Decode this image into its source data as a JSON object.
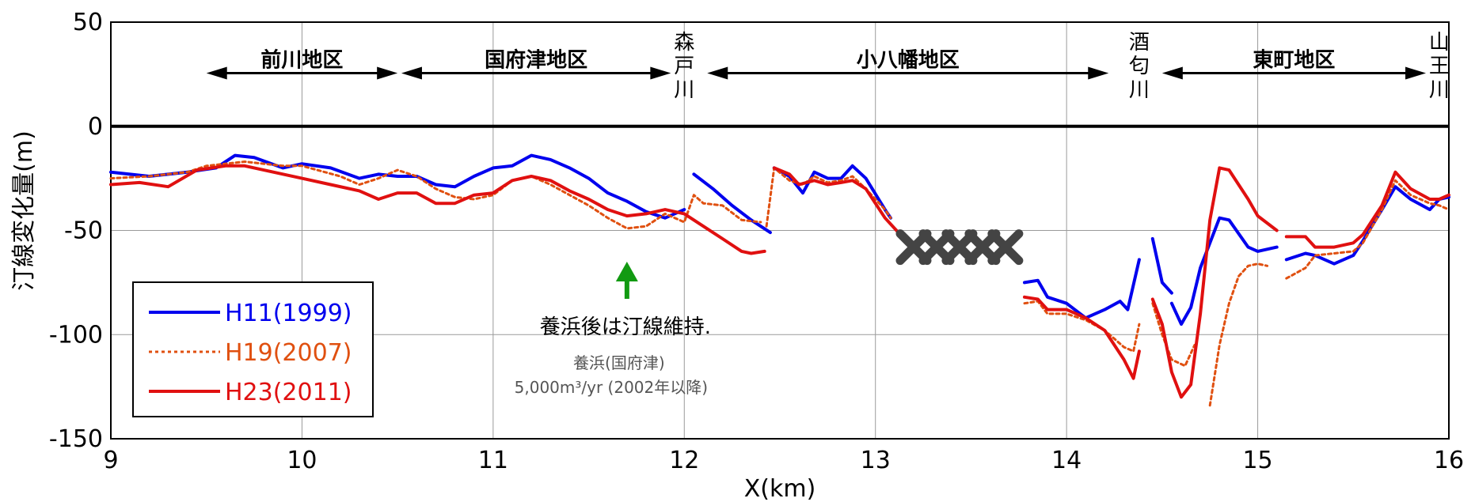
{
  "chart_data": {
    "type": "line",
    "xlabel": "X(km)",
    "ylabel": "汀線変化量(m)",
    "xlim": [
      9,
      16
    ],
    "ylim": [
      -150,
      50
    ],
    "xticks": [
      "9",
      "10",
      "11",
      "12",
      "13",
      "14",
      "15",
      "16"
    ],
    "yticks": [
      "50",
      "0",
      "-50",
      "-100",
      "-150"
    ],
    "grid": true,
    "legend_position": "bottom-left",
    "series": [
      {
        "name": "H11(1999)",
        "color": "#0000ee",
        "style": "solid",
        "segments": [
          [
            [
              9,
              -22
            ],
            [
              9.2,
              -24
            ],
            [
              9.4,
              -22
            ],
            [
              9.55,
              -20
            ],
            [
              9.65,
              -14
            ],
            [
              9.75,
              -15
            ],
            [
              9.9,
              -20
            ],
            [
              10,
              -18
            ],
            [
              10.15,
              -20
            ],
            [
              10.3,
              -25
            ],
            [
              10.4,
              -23
            ],
            [
              10.5,
              -24
            ],
            [
              10.6,
              -24
            ],
            [
              10.7,
              -28
            ],
            [
              10.8,
              -29
            ],
            [
              10.9,
              -24
            ],
            [
              11,
              -20
            ],
            [
              11.1,
              -19
            ],
            [
              11.2,
              -14
            ],
            [
              11.3,
              -16
            ],
            [
              11.4,
              -20
            ],
            [
              11.5,
              -25
            ],
            [
              11.6,
              -32
            ],
            [
              11.7,
              -36
            ],
            [
              11.8,
              -41
            ],
            [
              11.9,
              -44
            ],
            [
              12,
              -40
            ]
          ],
          [
            [
              12.05,
              -23
            ],
            [
              12.15,
              -30
            ],
            [
              12.25,
              -38
            ],
            [
              12.35,
              -45
            ],
            [
              12.45,
              -51
            ]
          ],
          [
            [
              12.47,
              -20
            ],
            [
              12.55,
              -24
            ],
            [
              12.62,
              -32
            ],
            [
              12.68,
              -22
            ],
            [
              12.75,
              -25
            ],
            [
              12.82,
              -25
            ],
            [
              12.88,
              -19
            ],
            [
              12.95,
              -25
            ],
            [
              13.05,
              -40
            ],
            [
              13.08,
              -44
            ]
          ],
          [
            [
              13.78,
              -75
            ],
            [
              13.85,
              -74
            ],
            [
              13.9,
              -82
            ],
            [
              14,
              -85
            ],
            [
              14.1,
              -92
            ],
            [
              14.2,
              -88
            ],
            [
              14.28,
              -84
            ],
            [
              14.32,
              -88
            ],
            [
              14.38,
              -64
            ]
          ],
          [
            [
              14.45,
              -54
            ],
            [
              14.5,
              -75
            ],
            [
              14.55,
              -80
            ]
          ],
          [
            [
              14.55,
              -85
            ],
            [
              14.6,
              -95
            ],
            [
              14.65,
              -87
            ],
            [
              14.7,
              -68
            ],
            [
              14.8,
              -44
            ],
            [
              14.85,
              -45
            ],
            [
              14.95,
              -58
            ],
            [
              15,
              -60
            ],
            [
              15.1,
              -58
            ]
          ],
          [
            [
              15.15,
              -64
            ],
            [
              15.25,
              -61
            ],
            [
              15.3,
              -62
            ],
            [
              15.4,
              -66
            ],
            [
              15.5,
              -62
            ],
            [
              15.55,
              -55
            ],
            [
              15.65,
              -40
            ],
            [
              15.72,
              -29
            ],
            [
              15.8,
              -35
            ],
            [
              15.9,
              -40
            ],
            [
              15.95,
              -35
            ],
            [
              16,
              -34
            ]
          ]
        ]
      },
      {
        "name": "H19(2007)",
        "color": "#e05010",
        "style": "dotted",
        "segments": [
          [
            [
              9,
              -25
            ],
            [
              9.2,
              -24
            ],
            [
              9.4,
              -22
            ],
            [
              9.5,
              -19
            ],
            [
              9.7,
              -17
            ],
            [
              9.9,
              -19
            ],
            [
              10,
              -19
            ],
            [
              10.2,
              -24
            ],
            [
              10.3,
              -28
            ],
            [
              10.4,
              -25
            ],
            [
              10.5,
              -21
            ],
            [
              10.6,
              -24
            ],
            [
              10.7,
              -30
            ],
            [
              10.8,
              -34
            ],
            [
              10.9,
              -35
            ],
            [
              11,
              -33
            ],
            [
              11.1,
              -26
            ],
            [
              11.2,
              -24
            ],
            [
              11.3,
              -28
            ],
            [
              11.4,
              -33
            ],
            [
              11.5,
              -38
            ],
            [
              11.6,
              -44
            ],
            [
              11.7,
              -49
            ],
            [
              11.8,
              -48
            ],
            [
              11.9,
              -42
            ],
            [
              12,
              -46
            ],
            [
              12.05,
              -33
            ],
            [
              12.1,
              -37
            ],
            [
              12.2,
              -38
            ],
            [
              12.3,
              -45
            ],
            [
              12.4,
              -46
            ]
          ],
          [
            [
              12.43,
              -48
            ],
            [
              12.47,
              -20
            ],
            [
              12.55,
              -26
            ],
            [
              12.62,
              -28
            ],
            [
              12.68,
              -24
            ],
            [
              12.75,
              -27
            ],
            [
              12.82,
              -26
            ],
            [
              12.88,
              -24
            ],
            [
              12.95,
              -30
            ],
            [
              13.05,
              -40
            ],
            [
              13.08,
              -44
            ]
          ],
          [
            [
              13.78,
              -85
            ],
            [
              13.85,
              -84
            ],
            [
              13.9,
              -90
            ],
            [
              14,
              -90
            ],
            [
              14.1,
              -93
            ],
            [
              14.2,
              -98
            ],
            [
              14.3,
              -106
            ],
            [
              14.35,
              -108
            ],
            [
              14.38,
              -95
            ]
          ],
          [
            [
              14.45,
              -85
            ],
            [
              14.5,
              -100
            ],
            [
              14.55,
              -112
            ],
            [
              14.62,
              -115
            ],
            [
              14.67,
              -105
            ]
          ],
          [
            [
              14.75,
              -134
            ],
            [
              14.8,
              -105
            ],
            [
              14.85,
              -85
            ],
            [
              14.9,
              -72
            ],
            [
              14.95,
              -67
            ],
            [
              15,
              -66
            ],
            [
              15.05,
              -67
            ]
          ],
          [
            [
              15.15,
              -73
            ],
            [
              15.25,
              -68
            ],
            [
              15.3,
              -62
            ],
            [
              15.4,
              -61
            ],
            [
              15.5,
              -60
            ],
            [
              15.55,
              -56
            ],
            [
              15.65,
              -40
            ],
            [
              15.72,
              -26
            ],
            [
              15.8,
              -33
            ],
            [
              15.9,
              -37
            ],
            [
              15.95,
              -38
            ],
            [
              16,
              -40
            ]
          ]
        ]
      },
      {
        "name": "H23(2011)",
        "color": "#e01010",
        "style": "solid",
        "segments": [
          [
            [
              9,
              -28
            ],
            [
              9.15,
              -27
            ],
            [
              9.3,
              -29
            ],
            [
              9.45,
              -21
            ],
            [
              9.6,
              -19
            ],
            [
              9.7,
              -19
            ],
            [
              9.85,
              -22
            ],
            [
              10,
              -25
            ],
            [
              10.15,
              -28
            ],
            [
              10.3,
              -31
            ],
            [
              10.4,
              -35
            ],
            [
              10.5,
              -32
            ],
            [
              10.6,
              -32
            ],
            [
              10.7,
              -37
            ],
            [
              10.8,
              -37
            ],
            [
              10.9,
              -33
            ],
            [
              11,
              -32
            ],
            [
              11.1,
              -26
            ],
            [
              11.2,
              -24
            ],
            [
              11.3,
              -26
            ],
            [
              11.4,
              -31
            ],
            [
              11.5,
              -35
            ],
            [
              11.6,
              -40
            ],
            [
              11.7,
              -43
            ],
            [
              11.8,
              -42
            ],
            [
              11.9,
              -40
            ],
            [
              12,
              -42
            ],
            [
              12.1,
              -48
            ],
            [
              12.2,
              -54
            ],
            [
              12.3,
              -60
            ],
            [
              12.35,
              -61
            ],
            [
              12.42,
              -60
            ]
          ],
          [
            [
              12.47,
              -20
            ],
            [
              12.55,
              -23
            ],
            [
              12.6,
              -28
            ],
            [
              12.68,
              -26
            ],
            [
              12.75,
              -28
            ],
            [
              12.82,
              -27
            ],
            [
              12.88,
              -26
            ],
            [
              12.95,
              -30
            ],
            [
              13.05,
              -44
            ],
            [
              13.12,
              -51
            ]
          ],
          [
            [
              13.78,
              -82
            ],
            [
              13.85,
              -83
            ],
            [
              13.9,
              -88
            ],
            [
              14,
              -88
            ],
            [
              14.1,
              -92
            ],
            [
              14.2,
              -98
            ],
            [
              14.3,
              -112
            ],
            [
              14.35,
              -121
            ],
            [
              14.38,
              -108
            ]
          ],
          [
            [
              14.45,
              -83
            ],
            [
              14.5,
              -95
            ],
            [
              14.55,
              -118
            ],
            [
              14.6,
              -130
            ],
            [
              14.65,
              -124
            ],
            [
              14.7,
              -90
            ],
            [
              14.75,
              -45
            ],
            [
              14.8,
              -20
            ],
            [
              14.85,
              -21
            ],
            [
              14.95,
              -35
            ],
            [
              15,
              -43
            ],
            [
              15.1,
              -50
            ]
          ],
          [
            [
              15.15,
              -53
            ],
            [
              15.25,
              -53
            ],
            [
              15.3,
              -58
            ],
            [
              15.4,
              -58
            ],
            [
              15.5,
              -56
            ],
            [
              15.55,
              -52
            ],
            [
              15.65,
              -38
            ],
            [
              15.72,
              -22
            ],
            [
              15.8,
              -30
            ],
            [
              15.9,
              -35
            ],
            [
              15.95,
              -35
            ],
            [
              16,
              -33
            ]
          ]
        ]
      }
    ],
    "regions": [
      {
        "label": "前川地区",
        "x1": 9.5,
        "x2": 10.5
      },
      {
        "label": "国府津地区",
        "x1": 10.52,
        "x2": 11.93
      },
      {
        "label": "小八幡地区",
        "x1": 12.12,
        "x2": 14.22
      },
      {
        "label": "東町地区",
        "x1": 14.5,
        "x2": 15.88
      }
    ],
    "rivers": [
      {
        "chars": [
          "森",
          "戸",
          "川"
        ],
        "x": 12.0
      },
      {
        "chars": [
          "酒",
          "匂",
          "川"
        ],
        "x": 14.38
      },
      {
        "chars": [
          "山",
          "王",
          "川"
        ],
        "x": 15.95
      }
    ],
    "annotations": {
      "arrow_x": 11.7,
      "main_text": "養浜後は汀線維持.",
      "sub_text_1": "養浜(国府津)",
      "sub_text_2": "5,000m³/yr (2002年以降)"
    },
    "missing_markers": {
      "symbol": "✖",
      "count": 5,
      "x_from": 13.2,
      "x_to": 13.68,
      "y": -58
    }
  }
}
